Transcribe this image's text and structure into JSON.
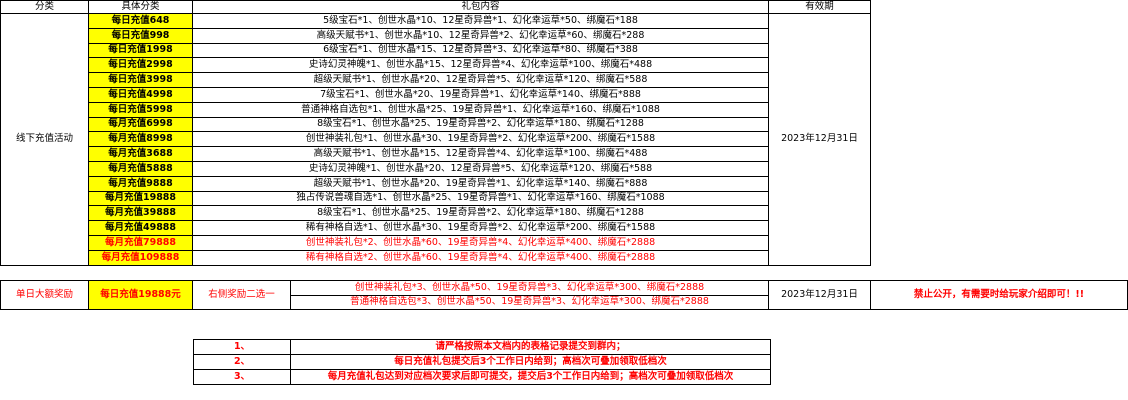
{
  "main_table": {
    "header": [
      "分类",
      "具体分类",
      "礼包内容",
      "有效期"
    ],
    "category": "线下充值活动",
    "validity": "2023年12月31日",
    "rows": [
      {
        "name": "每日充值648",
        "content": "5级宝石*1、创世水晶*10、12星奇异兽*1、幻化幸运草*50、绑魔石*188"
      },
      {
        "name": "每日充值998",
        "content": "高级天赋书*1、创世水晶*10、12星奇异兽*2、幻化幸运草*60、绑魔石*288"
      },
      {
        "name": "每日充值1998",
        "content": "6级宝石*1、创世水晶*15、12星奇异兽*3、幻化幸运草*80、绑魔石*388"
      },
      {
        "name": "每日充值2998",
        "content": "史诗幻灵神魄*1、创世水晶*15、12星奇异兽*4、幻化幸运草*100、绑魔石*488"
      },
      {
        "name": "每日充值3998",
        "content": "超级天赋书*1、创世水晶*20、12星奇异兽*5、幻化幸运草*120、绑魔石*588"
      },
      {
        "name": "每日充值4998",
        "content": "7级宝石*1、创世水晶*20、19星奇异兽*1、幻化幸运草*140、绑魔石*888"
      },
      {
        "name": "每日充值5998",
        "content": "普通神格自选包*1、创世水晶*25、19星奇异兽*1、幻化幸运草*160、绑魔石*1088"
      },
      {
        "name": "每月充值6998",
        "content": "8级宝石*1、创世水晶*25、19星奇异兽*2、幻化幸运草*180、绑魔石*1288"
      },
      {
        "name": "每月充值8998",
        "content": "创世神装礼包*1、创世水晶*30、19星奇异兽*2、幻化幸运草*200、绑魔石*1588"
      },
      {
        "name": "每月充值3688",
        "content": "高级天赋书*1、创世水晶*15、12星奇异兽*4、幻化幸运草*100、绑魔石*488"
      },
      {
        "name": "每月充值5888",
        "content": "史诗幻灵神魄*1、创世水晶*20、12星奇异兽*5、幻化幸运草*120、绑魔石*588"
      },
      {
        "name": "每月充值9888",
        "content": "超级天赋书*1、创世水晶*20、19星奇异兽*1、幻化幸运草*140、绑魔石*888"
      },
      {
        "name": "每月充值19888",
        "content": "独占传说兽魂自选*1、创世水晶*25、19星奇异兽*1、幻化幸运草*160、绑魔石*1088"
      },
      {
        "name": "每月充值39888",
        "content": "8级宝石*1、创世水晶*25、19星奇异兽*2、幻化幸运草*180、绑魔石*1288"
      },
      {
        "name": "每月充值49888",
        "content": "稀有神格自选*1、创世水晶*30、19星奇异兽*2、幻化幸运草*200、绑魔石*1588"
      },
      {
        "name": "每月充值79888",
        "content": "创世神装礼包*2、创世水晶*60、19星奇异兽*4、幻化幸运草*400、绑魔石*2888",
        "color": "#ff0000"
      },
      {
        "name": "每月充值109888",
        "content": "稀有神格自选*2、创世水晶*60、19星奇异兽*4、幻化幸运草*400、绑魔石*2888",
        "color": "#ff0000"
      }
    ]
  },
  "big_table": {
    "category": "单日大额奖励",
    "name": "每日充值19888元",
    "choice": "右侧奖励二选一",
    "options": [
      "创世神装礼包*3、创世水晶*50、19星奇异兽*3、幻化幸运草*300、绑魔石*2888",
      "普通神格自选包*3、创世水晶*50、19星奇异兽*3、幻化幸运草*300、绑魔石*2888"
    ],
    "validity": "2023年12月31日",
    "note": "禁止公开，有需要时给玩家介绍即可！!!"
  },
  "notes": [
    {
      "index": "1、",
      "text": "请严格按照本文档内的表格记录提交到群内；"
    },
    {
      "index": "2、",
      "text": "每日充值礼包提交后3个工作日内给到；高档次可叠加领取低档次"
    },
    {
      "index": "3、",
      "text": "每月充值礼包达到对应档次要求后即可提交，提交后3个工作日内给到；高档次可叠加领取低档次"
    }
  ]
}
